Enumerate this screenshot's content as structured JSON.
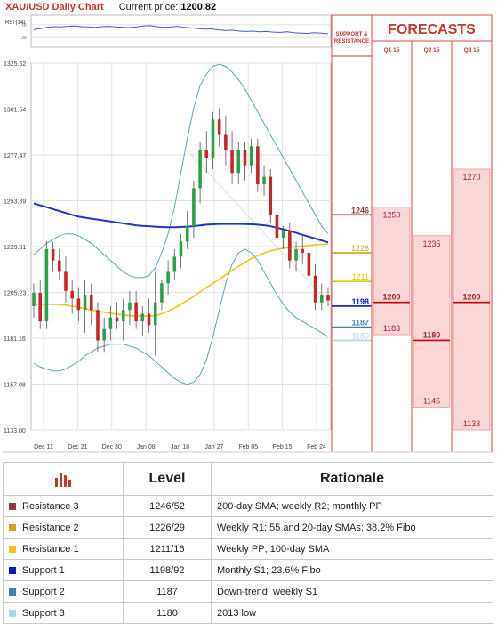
{
  "header": {
    "title": "XAU/USD Daily Chart",
    "price_label": "Current price:",
    "price_value": "1200.82"
  },
  "rsi": {
    "label": "RSI (14)",
    "levels": [
      "70",
      "30"
    ],
    "ylim": [
      0,
      100
    ],
    "values": [
      55,
      58,
      62,
      64,
      63,
      65,
      66,
      64,
      63,
      62,
      64,
      65,
      63,
      62,
      61,
      63,
      66,
      67,
      64,
      62,
      63,
      65,
      62,
      60,
      58,
      56,
      57,
      54,
      52,
      53,
      50,
      49,
      50,
      48,
      49,
      47,
      46,
      48,
      45,
      44,
      43,
      45,
      44,
      42
    ]
  },
  "panel": {
    "support_resistance_label": "SUPPORT & RESISTANCE",
    "forecasts_label": "FORECASTS",
    "quarters": [
      "Q1 15",
      "Q2 15",
      "Q3 15"
    ]
  },
  "colors": {
    "accent": "#c0392b",
    "r3": "#8e3b46",
    "r2": "#d4a017",
    "r1": "#e8c400",
    "s1": "#0b18c8",
    "s2": "#4a7fae",
    "s3": "#b3d4e5",
    "sma200": "#2233c8",
    "sma100": "#f0c419"
  },
  "chart_data": {
    "type": "candlestick",
    "x_tick_labels": [
      "Dec 11",
      "Dec 21",
      "Dec 30",
      "Jan 08",
      "Jan 18",
      "Jan 27",
      "Feb 05",
      "Feb 15",
      "Feb 24"
    ],
    "y_tick_labels": [
      "1325.62",
      "1301.54",
      "1277.47",
      "1253.39",
      "1229.31",
      "1205.23",
      "1181.16",
      "1157.08",
      "1133.00"
    ],
    "ylim": [
      1133.0,
      1325.62
    ],
    "grid": true,
    "ohlc": [
      [
        1198,
        1210,
        1192,
        1205
      ],
      [
        1205,
        1212,
        1186,
        1190
      ],
      [
        1190,
        1232,
        1186,
        1228
      ],
      [
        1228,
        1232,
        1216,
        1222
      ],
      [
        1222,
        1228,
        1212,
        1216
      ],
      [
        1216,
        1224,
        1200,
        1206
      ],
      [
        1206,
        1212,
        1194,
        1202
      ],
      [
        1202,
        1208,
        1190,
        1196
      ],
      [
        1196,
        1212,
        1184,
        1204
      ],
      [
        1204,
        1210,
        1188,
        1196
      ],
      [
        1196,
        1200,
        1174,
        1180
      ],
      [
        1180,
        1192,
        1174,
        1186
      ],
      [
        1186,
        1198,
        1180,
        1192
      ],
      [
        1192,
        1200,
        1186,
        1190
      ],
      [
        1190,
        1202,
        1180,
        1196
      ],
      [
        1196,
        1206,
        1188,
        1200
      ],
      [
        1200,
        1206,
        1186,
        1190
      ],
      [
        1190,
        1198,
        1182,
        1194
      ],
      [
        1194,
        1202,
        1184,
        1188
      ],
      [
        1188,
        1216,
        1172,
        1200
      ],
      [
        1200,
        1212,
        1196,
        1210
      ],
      [
        1210,
        1222,
        1204,
        1216
      ],
      [
        1216,
        1228,
        1212,
        1224
      ],
      [
        1224,
        1236,
        1218,
        1232
      ],
      [
        1232,
        1248,
        1228,
        1240
      ],
      [
        1240,
        1264,
        1234,
        1260
      ],
      [
        1260,
        1284,
        1252,
        1280
      ],
      [
        1280,
        1290,
        1268,
        1276
      ],
      [
        1276,
        1300,
        1270,
        1296
      ],
      [
        1296,
        1302,
        1282,
        1288
      ],
      [
        1288,
        1298,
        1272,
        1280
      ],
      [
        1280,
        1290,
        1262,
        1268
      ],
      [
        1268,
        1284,
        1262,
        1280
      ],
      [
        1280,
        1284,
        1264,
        1272
      ],
      [
        1272,
        1286,
        1268,
        1282
      ],
      [
        1282,
        1286,
        1258,
        1262
      ],
      [
        1262,
        1272,
        1256,
        1266
      ],
      [
        1266,
        1270,
        1242,
        1246
      ],
      [
        1246,
        1252,
        1230,
        1234
      ],
      [
        1234,
        1240,
        1228,
        1238
      ],
      [
        1238,
        1242,
        1218,
        1222
      ],
      [
        1222,
        1232,
        1216,
        1228
      ],
      [
        1228,
        1236,
        1220,
        1226
      ],
      [
        1226,
        1234,
        1210,
        1214
      ],
      [
        1214,
        1220,
        1196,
        1200
      ],
      [
        1200,
        1210,
        1196,
        1204
      ],
      [
        1204,
        1208,
        1198,
        1201
      ]
    ],
    "sma_200": [
      1252,
      1251,
      1250,
      1249,
      1248,
      1247,
      1246,
      1245,
      1244.5,
      1244,
      1243.5,
      1243,
      1242.5,
      1242,
      1241.5,
      1241,
      1240.5,
      1240.2,
      1240,
      1239.8,
      1239.6,
      1239.5,
      1239.5,
      1239.6,
      1239.8,
      1240,
      1240.4,
      1240.8,
      1241,
      1241.2,
      1241.2,
      1241.2,
      1241.2,
      1241.1,
      1241,
      1240.8,
      1240.5,
      1240,
      1239.2,
      1238.4,
      1237.5,
      1236.5,
      1235.5,
      1234.5,
      1233.5,
      1232.5,
      1231.5
    ],
    "sma_100": [
      1199,
      1199,
      1199,
      1199,
      1198.8,
      1198.6,
      1198,
      1197.4,
      1196.8,
      1196,
      1195.4,
      1194.8,
      1194.3,
      1193.8,
      1193.4,
      1193,
      1192.8,
      1192.7,
      1192.8,
      1193,
      1194,
      1195.4,
      1197,
      1199,
      1201,
      1203.2,
      1205.5,
      1207.8,
      1210,
      1212.2,
      1214.5,
      1216.8,
      1219,
      1221,
      1223,
      1224.6,
      1226,
      1227,
      1227.8,
      1228.4,
      1228.9,
      1229.3,
      1229.6,
      1229.9,
      1230.2,
      1230.5,
      1230.7
    ],
    "bollinger_upper": [
      1225,
      1228,
      1231,
      1233,
      1235,
      1236,
      1236,
      1235,
      1233,
      1231,
      1228,
      1225,
      1222,
      1219,
      1216,
      1214,
      1213,
      1213,
      1214,
      1218,
      1226,
      1236,
      1250,
      1268,
      1286,
      1302,
      1314,
      1320,
      1324,
      1325,
      1324,
      1321,
      1317,
      1312,
      1306,
      1300,
      1294,
      1288,
      1282,
      1276,
      1270,
      1264,
      1258,
      1252,
      1246,
      1240,
      1236
    ],
    "bollinger_lower": [
      1168,
      1166,
      1165,
      1164,
      1164,
      1165,
      1167,
      1169,
      1172,
      1174,
      1176,
      1177,
      1178,
      1178,
      1178,
      1177,
      1176,
      1174,
      1172,
      1169,
      1166,
      1163,
      1160,
      1158,
      1157,
      1158,
      1162,
      1170,
      1182,
      1196,
      1210,
      1220,
      1226,
      1228,
      1226,
      1222,
      1216,
      1210,
      1204,
      1199,
      1195,
      1192,
      1190,
      1188,
      1186,
      1184,
      1182
    ],
    "trend_line": [
      [
        40,
        1330
      ],
      [
        47,
        1200
      ]
    ],
    "support_resistance": [
      {
        "label": "1246",
        "value": 1246,
        "key": "r3"
      },
      {
        "label": "1226",
        "value": 1226,
        "key": "r2"
      },
      {
        "label": "1211",
        "value": 1211,
        "key": "r1"
      },
      {
        "label": "1198",
        "value": 1198,
        "key": "s1"
      },
      {
        "label": "1187",
        "value": 1187,
        "key": "s2"
      },
      {
        "label": "1180",
        "value": 1180,
        "key": "s3"
      }
    ],
    "forecasts": [
      {
        "quarter": "Q1 15",
        "high": 1250,
        "mid": 1200,
        "low": 1183
      },
      {
        "quarter": "Q2 15",
        "high": 1235,
        "mid": 1180,
        "low": 1145
      },
      {
        "quarter": "Q3 15",
        "high": 1270,
        "mid": 1200,
        "low": 1133
      }
    ]
  },
  "table": {
    "headers": {
      "level": "Level",
      "rationale": "Rationale"
    },
    "rows": [
      {
        "name": "Resistance 3",
        "level": "1246/52",
        "rationale": "200-day SMA; weekly R2; monthly PP",
        "color": "#8e3b46"
      },
      {
        "name": "Resistance 2",
        "level": "1226/29",
        "rationale": "Weekly R1; 55 and 20-day SMAs; 38.2% Fibo",
        "color": "#d4a017"
      },
      {
        "name": "Resistance 1",
        "level": "1211/16",
        "rationale": "Weekly PP; 100-day SMA",
        "color": "#f0c419"
      },
      {
        "name": "Support 1",
        "level": "1198/92",
        "rationale": "Monthly S1; 23.6% Fibo",
        "color": "#0b18c8"
      },
      {
        "name": "Support 2",
        "level": "1187",
        "rationale": "Down-trend; weekly S1",
        "color": "#4a7fae"
      },
      {
        "name": "Support 3",
        "level": "1180",
        "rationale": "2013 low",
        "color": "#b3d4e5"
      }
    ]
  }
}
